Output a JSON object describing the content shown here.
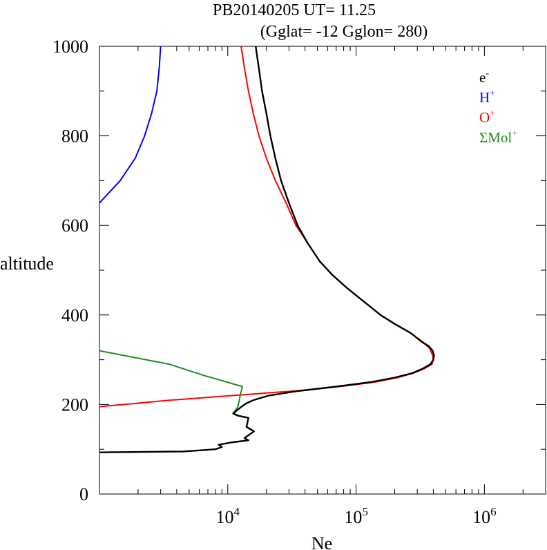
{
  "chart_data": {
    "type": "line",
    "title": "PB20140205   UT=  11.25",
    "subtitle": "(Gglat= -12   Gglon=  280)",
    "xlabel": "Ne",
    "ylabel": "altitude",
    "x_scale": "log",
    "xlim": [
      1000,
      3000000
    ],
    "ylim": [
      0,
      1000
    ],
    "x_major_ticks": [
      10000,
      100000,
      1000000
    ],
    "x_tick_labels": [
      {
        "base": "10",
        "exp": "4"
      },
      {
        "base": "10",
        "exp": "5"
      },
      {
        "base": "10",
        "exp": "6"
      }
    ],
    "y_ticks": [
      0,
      200,
      400,
      600,
      800,
      1000
    ],
    "y_tick_labels": [
      "0",
      "200",
      "400",
      "600",
      "800",
      "1000"
    ],
    "grid": false,
    "legend_position": "top-right",
    "series": [
      {
        "name": "e-",
        "legend": {
          "base": "e",
          "sup": "-"
        },
        "color": "#000000",
        "points": [
          [
            1000,
            93
          ],
          [
            4500,
            95
          ],
          [
            8000,
            100
          ],
          [
            9000,
            105
          ],
          [
            8500,
            110
          ],
          [
            10500,
            115
          ],
          [
            14500,
            120
          ],
          [
            13500,
            125
          ],
          [
            16000,
            140
          ],
          [
            14000,
            150
          ],
          [
            14500,
            170
          ],
          [
            12000,
            175
          ],
          [
            11000,
            180
          ],
          [
            12800,
            195
          ],
          [
            14000,
            203
          ],
          [
            16000,
            210
          ],
          [
            21000,
            220
          ],
          [
            35000,
            230
          ],
          [
            70000,
            240
          ],
          [
            130000,
            250
          ],
          [
            200000,
            260
          ],
          [
            275000,
            270
          ],
          [
            330000,
            280
          ],
          [
            380000,
            290
          ],
          [
            400000,
            300
          ],
          [
            405000,
            310
          ],
          [
            395000,
            320
          ],
          [
            370000,
            330
          ],
          [
            325000,
            340
          ],
          [
            265000,
            360
          ],
          [
            200000,
            380
          ],
          [
            155000,
            400
          ],
          [
            115000,
            430
          ],
          [
            85000,
            460
          ],
          [
            65000,
            490
          ],
          [
            52000,
            520
          ],
          [
            42000,
            560
          ],
          [
            35000,
            600
          ],
          [
            30000,
            650
          ],
          [
            26000,
            700
          ],
          [
            23500,
            750
          ],
          [
            21500,
            800
          ],
          [
            20000,
            850
          ],
          [
            18500,
            900
          ],
          [
            17500,
            950
          ],
          [
            16500,
            1000
          ]
        ]
      },
      {
        "name": "H+",
        "legend": {
          "base": "H",
          "sup": "+"
        },
        "color": "#0000ff",
        "points": [
          [
            1000,
            650
          ],
          [
            1450,
            700
          ],
          [
            1900,
            750
          ],
          [
            2250,
            800
          ],
          [
            2550,
            850
          ],
          [
            2800,
            900
          ],
          [
            2920,
            950
          ],
          [
            3000,
            1000
          ]
        ]
      },
      {
        "name": "O+",
        "legend": {
          "base": "O",
          "sup": "+"
        },
        "color": "#ff0000",
        "points": [
          [
            1000,
            195
          ],
          [
            3700,
            210
          ],
          [
            11000,
            220
          ],
          [
            40000,
            232
          ],
          [
            80000,
            241
          ],
          [
            140000,
            250
          ],
          [
            210000,
            260
          ],
          [
            280000,
            270
          ],
          [
            340000,
            280
          ],
          [
            390000,
            290
          ],
          [
            400000,
            300
          ],
          [
            395000,
            310
          ],
          [
            375000,
            325
          ],
          [
            330000,
            340
          ],
          [
            265000,
            360
          ],
          [
            200000,
            380
          ],
          [
            155000,
            400
          ],
          [
            115000,
            430
          ],
          [
            85000,
            460
          ],
          [
            65000,
            490
          ],
          [
            52000,
            520
          ],
          [
            42000,
            560
          ],
          [
            34000,
            600
          ],
          [
            28500,
            650
          ],
          [
            23500,
            700
          ],
          [
            20000,
            750
          ],
          [
            17500,
            800
          ],
          [
            15800,
            850
          ],
          [
            14500,
            900
          ],
          [
            13500,
            950
          ],
          [
            12700,
            1000
          ]
        ]
      },
      {
        "name": "ΣMol+",
        "legend": {
          "base": "ΣMol",
          "sup": "+"
        },
        "color": "#228b22",
        "points": [
          [
            1000,
            320
          ],
          [
            3500,
            290
          ],
          [
            6500,
            265
          ],
          [
            13000,
            240
          ],
          [
            12500,
            220
          ],
          [
            12000,
            195
          ],
          [
            11000,
            180
          ]
        ]
      }
    ]
  }
}
